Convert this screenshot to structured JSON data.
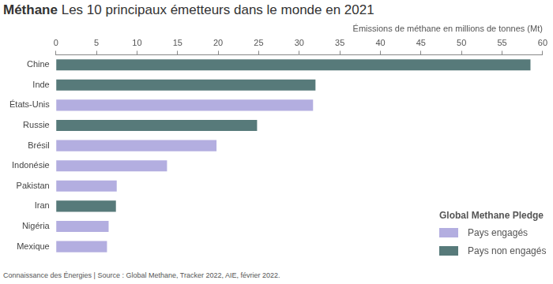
{
  "chart_data": {
    "type": "bar",
    "orientation": "horizontal",
    "title": "Méthane",
    "subtitle": "Les 10 principaux émetteurs dans le monde en 2021",
    "x_label": "Émissions de méthane en millions de tonnes (Mt)",
    "annotations": [
      "Connaissance des Énergies | Source : Global Methane, Tracker 2022, AIE, février 2022."
    ],
    "legend_title": "Global Methane Pledge",
    "legend": "lower right",
    "grid": false,
    "categories": [
      "Chine",
      "Inde",
      "États-Unis",
      "Russie",
      "Brésil",
      "Indonésie",
      "Pakistan",
      "Iran",
      "Nigéria",
      "Mexique"
    ],
    "series": [
      {
        "name": "Pays engagés",
        "color": "#b3aee0",
        "values": [
          null,
          null,
          31.7,
          null,
          19.8,
          13.7,
          7.5,
          null,
          6.5,
          6.3
        ]
      },
      {
        "name": "Pays non engagés",
        "color": "#577a7a",
        "values": [
          58.5,
          32,
          null,
          24.8,
          null,
          null,
          null,
          7.4,
          null,
          null
        ]
      }
    ],
    "xlim": [
      0,
      60
    ],
    "xticks": [
      0,
      5,
      10,
      15,
      20,
      25,
      30,
      35,
      40,
      45,
      50,
      55,
      60
    ]
  }
}
